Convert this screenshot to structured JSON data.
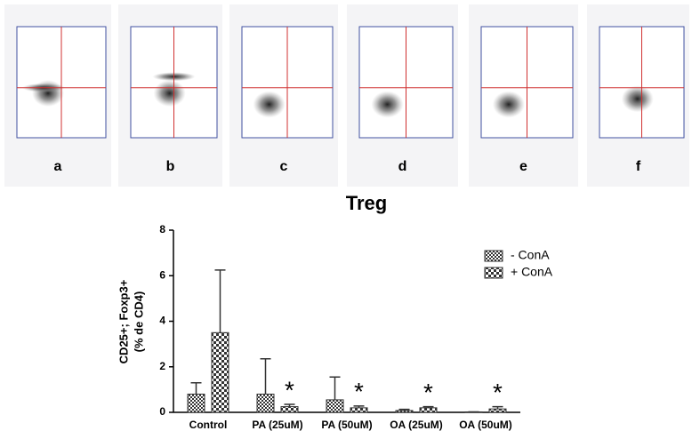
{
  "panel_labels": [
    "a",
    "b",
    "c",
    "d",
    "e",
    "f"
  ],
  "chart_data": {
    "type": "bar",
    "title": "Treg",
    "y_label": [
      "CD25+; Foxp3+",
      "(% de CD4)"
    ],
    "categories": [
      "Control",
      "PA (25uM)",
      "PA (50uM)",
      "OA (25uM)",
      "OA (50uM)"
    ],
    "series": [
      {
        "name": "- ConA",
        "color": "#333333",
        "values": [
          0.8,
          0.8,
          0.55,
          0.08,
          0.02
        ],
        "errors": [
          0.5,
          1.55,
          1.0,
          0.05,
          0
        ]
      },
      {
        "name": "+ ConA",
        "color": "#333333",
        "values": [
          3.5,
          0.25,
          0.2,
          0.2,
          0.15
        ],
        "errors": [
          2.75,
          0.1,
          0.08,
          0.05,
          0.1
        ]
      }
    ],
    "significance": [
      null,
      "*",
      "*",
      "*",
      "*"
    ],
    "ylim": [
      0,
      8
    ],
    "yticks": [
      0,
      2,
      4,
      6,
      8
    ],
    "grid": false,
    "legend": "upper right"
  }
}
